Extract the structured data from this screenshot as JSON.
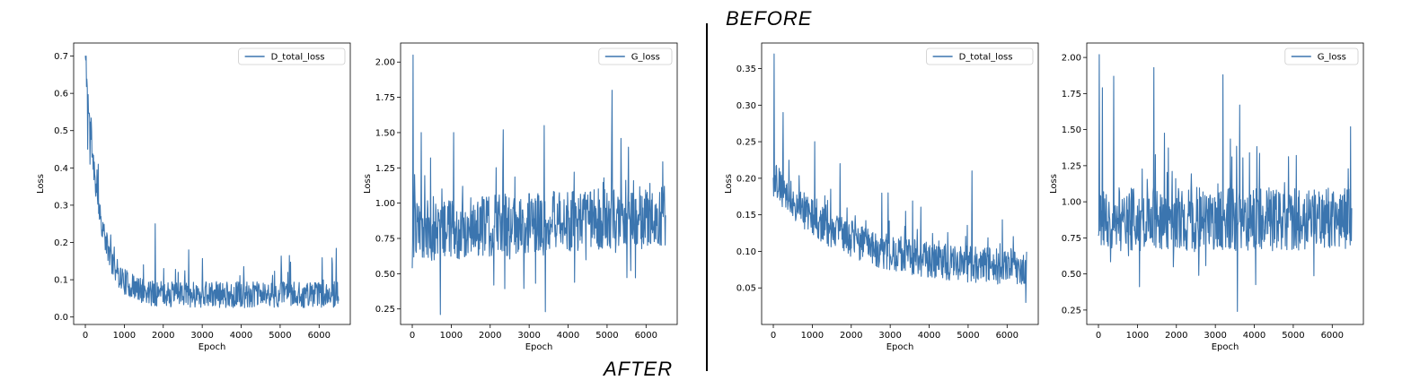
{
  "labels": {
    "before": "BEFORE",
    "after": "AFTER"
  },
  "colors": {
    "series": "#3b75af"
  },
  "chart_data": [
    {
      "type": "line",
      "legend": "D_total_loss",
      "legend_position": "upper-right",
      "xlabel": "Epoch",
      "ylabel": "Loss",
      "xlim": [
        -300,
        6800
      ],
      "ylim": [
        -0.02,
        0.735
      ],
      "xticks": [
        0,
        1000,
        2000,
        3000,
        4000,
        5000,
        6000
      ],
      "yticks": [
        0.0,
        0.1,
        0.2,
        0.3,
        0.4,
        0.5,
        0.6,
        0.7
      ],
      "ydecimals": 1,
      "x_end": 6500,
      "shape": "decay",
      "start": 0.7,
      "floor": 0.06,
      "tau": 350,
      "noise": 0.035,
      "spike": 0.1,
      "seed": 11,
      "ymin_clip": 0.02,
      "peaks": [
        [
          20,
          0.7
        ],
        [
          60,
          0.45
        ],
        [
          120,
          0.41
        ],
        [
          330,
          0.41
        ],
        [
          1790,
          0.25
        ],
        [
          2650,
          0.18
        ],
        [
          5200,
          0.12
        ],
        [
          6400,
          0.03
        ]
      ]
    },
    {
      "type": "line",
      "legend": "G_loss",
      "legend_position": "upper-right",
      "xlabel": "Epoch",
      "ylabel": "Loss",
      "xlim": [
        -300,
        6800
      ],
      "ylim": [
        0.14,
        2.135
      ],
      "xticks": [
        0,
        1000,
        2000,
        3000,
        4000,
        5000,
        6000
      ],
      "yticks": [
        0.25,
        0.5,
        0.75,
        1.0,
        1.25,
        1.5,
        1.75,
        2.0
      ],
      "ydecimals": 2,
      "x_end": 6500,
      "shape": "noisy",
      "center": 0.8,
      "drift": 0.12,
      "noise": 0.22,
      "spike": 0.45,
      "seed": 23,
      "ymin_clip": 0.21,
      "peaks": [
        [
          20,
          2.05
        ],
        [
          230,
          1.5
        ],
        [
          720,
          0.21
        ],
        [
          1060,
          1.5
        ],
        [
          2330,
          1.52
        ],
        [
          3390,
          1.55
        ],
        [
          3420,
          0.23
        ],
        [
          5130,
          1.8
        ],
        [
          6470,
          1.12
        ]
      ]
    },
    {
      "type": "line",
      "legend": "D_total_loss",
      "legend_position": "upper-right",
      "xlabel": "Epoch",
      "ylabel": "Loss",
      "xlim": [
        -300,
        6800
      ],
      "ylim": [
        0.0,
        0.385
      ],
      "xticks": [
        0,
        1000,
        2000,
        3000,
        4000,
        5000,
        6000
      ],
      "yticks": [
        0.05,
        0.1,
        0.15,
        0.2,
        0.25,
        0.3,
        0.35
      ],
      "ydecimals": 2,
      "x_end": 6500,
      "shape": "decay",
      "start": 0.2,
      "floor": 0.075,
      "tau": 1800,
      "noise": 0.025,
      "spike": 0.06,
      "seed": 37,
      "ymin_clip": 0.02,
      "peaks": [
        [
          20,
          0.37
        ],
        [
          250,
          0.29
        ],
        [
          1060,
          0.25
        ],
        [
          1710,
          0.22
        ],
        [
          2950,
          0.18
        ],
        [
          5100,
          0.21
        ],
        [
          6480,
          0.03
        ]
      ]
    },
    {
      "type": "line",
      "legend": "G_loss",
      "legend_position": "upper-right",
      "xlabel": "Epoch",
      "ylabel": "Loss",
      "xlim": [
        -300,
        6800
      ],
      "ylim": [
        0.15,
        2.1
      ],
      "xticks": [
        0,
        1000,
        2000,
        3000,
        4000,
        5000,
        6000
      ],
      "yticks": [
        0.25,
        0.5,
        0.75,
        1.0,
        1.25,
        1.5,
        1.75,
        2.0
      ],
      "ydecimals": 2,
      "x_end": 6500,
      "shape": "noisy",
      "center": 0.88,
      "drift": 0.0,
      "noise": 0.22,
      "spike": 0.45,
      "seed": 51,
      "ymin_clip": 0.24,
      "peaks": [
        [
          20,
          2.02
        ],
        [
          100,
          1.79
        ],
        [
          390,
          1.87
        ],
        [
          1420,
          1.93
        ],
        [
          3200,
          1.88
        ],
        [
          3570,
          0.24
        ],
        [
          3630,
          1.67
        ],
        [
          6470,
          1.52
        ]
      ]
    }
  ]
}
